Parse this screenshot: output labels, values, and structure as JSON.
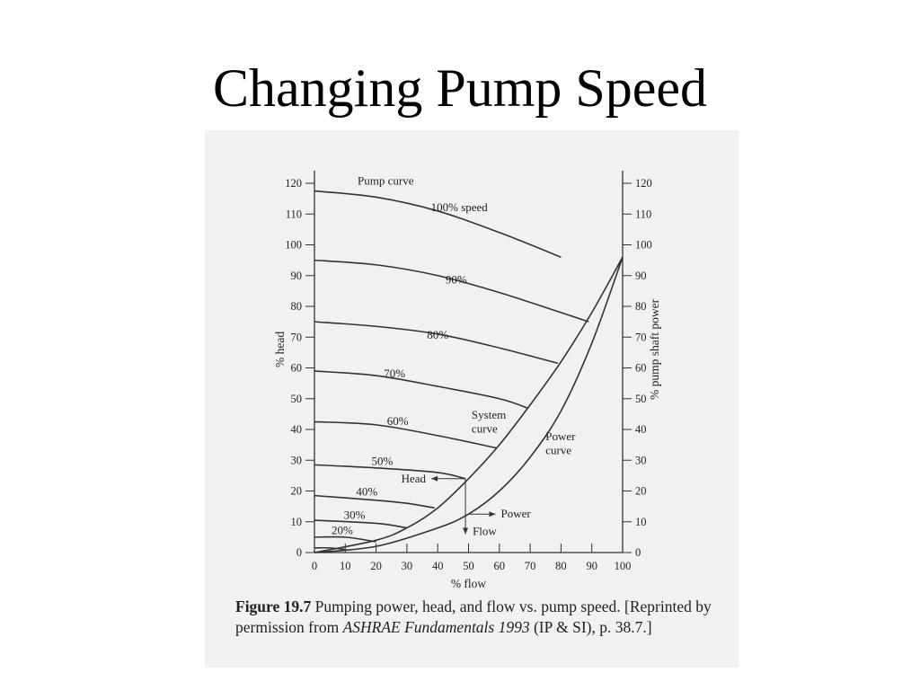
{
  "slide": {
    "title": "Changing Pump Speed"
  },
  "caption": {
    "figure_label": "Figure 19.7",
    "text": " Pumping power, head, and flow vs. pump speed. [Reprinted by permission from ",
    "source_title": "ASHRAE Fundamentals 1993",
    "source_rest": " (IP & SI), p. 38.7.]"
  },
  "chart_data": {
    "type": "line",
    "xlabel": "% flow",
    "ylabel_left": "% head",
    "ylabel_right": "% pump shaft power",
    "xlim": [
      0,
      100
    ],
    "ylim": [
      0,
      120
    ],
    "x_ticks": [
      "0",
      "10",
      "20",
      "30",
      "40",
      "50",
      "60",
      "70",
      "80",
      "90",
      "100"
    ],
    "y_ticks": [
      "0",
      "10",
      "20",
      "30",
      "40",
      "50",
      "60",
      "70",
      "80",
      "90",
      "100",
      "110",
      "120"
    ],
    "pump_curves": [
      {
        "label": "100% speed",
        "points": [
          [
            0,
            117.5
          ],
          [
            20,
            115.5
          ],
          [
            40,
            111
          ],
          [
            60,
            104
          ],
          [
            80,
            96
          ]
        ]
      },
      {
        "label": "90%",
        "points": [
          [
            0,
            95
          ],
          [
            20,
            93.5
          ],
          [
            40,
            90
          ],
          [
            60,
            84.5
          ],
          [
            80,
            78
          ],
          [
            89,
            75
          ]
        ]
      },
      {
        "label": "80%",
        "points": [
          [
            0,
            75
          ],
          [
            20,
            73.5
          ],
          [
            40,
            71
          ],
          [
            60,
            66.5
          ],
          [
            79,
            61.5
          ]
        ]
      },
      {
        "label": "70%",
        "points": [
          [
            0,
            59
          ],
          [
            20,
            57.5
          ],
          [
            40,
            54
          ],
          [
            60,
            50
          ],
          [
            69,
            47
          ]
        ]
      },
      {
        "label": "60%",
        "points": [
          [
            0,
            42.5
          ],
          [
            20,
            41.5
          ],
          [
            40,
            38
          ],
          [
            59,
            34
          ]
        ]
      },
      {
        "label": "50%",
        "points": [
          [
            0,
            28.5
          ],
          [
            20,
            27.5
          ],
          [
            40,
            26
          ],
          [
            49,
            24
          ]
        ]
      },
      {
        "label": "40%",
        "points": [
          [
            0,
            18.5
          ],
          [
            20,
            17
          ],
          [
            30,
            16
          ],
          [
            39,
            14.5
          ]
        ]
      },
      {
        "label": "30%",
        "points": [
          [
            0,
            10.5
          ],
          [
            20,
            9.5
          ],
          [
            30,
            8
          ]
        ]
      },
      {
        "label": "20%",
        "points": [
          [
            0,
            5
          ],
          [
            10,
            5
          ],
          [
            20,
            3.5
          ]
        ]
      },
      {
        "label": "",
        "points": [
          [
            0,
            1.5
          ],
          [
            5,
            1.5
          ],
          [
            10,
            1
          ]
        ]
      }
    ],
    "system_curve": {
      "label": "System curve",
      "points": [
        [
          0,
          0
        ],
        [
          20,
          4
        ],
        [
          30,
          8
        ],
        [
          40,
          14.5
        ],
        [
          50,
          24
        ],
        [
          60,
          35
        ],
        [
          70,
          48
        ],
        [
          80,
          62
        ],
        [
          90,
          78
        ],
        [
          100,
          96
        ]
      ]
    },
    "power_curve": {
      "label": "Power curve",
      "points": [
        [
          0,
          0
        ],
        [
          20,
          2
        ],
        [
          40,
          8
        ],
        [
          50,
          12.5
        ],
        [
          60,
          20
        ],
        [
          70,
          31
        ],
        [
          80,
          46
        ],
        [
          90,
          68
        ],
        [
          100,
          96
        ]
      ]
    },
    "operating_point": {
      "x": 49,
      "y": 24
    },
    "annotations": {
      "head": "Head",
      "power": "Power",
      "flow": "Flow",
      "pump_curve": "Pump curve"
    }
  }
}
